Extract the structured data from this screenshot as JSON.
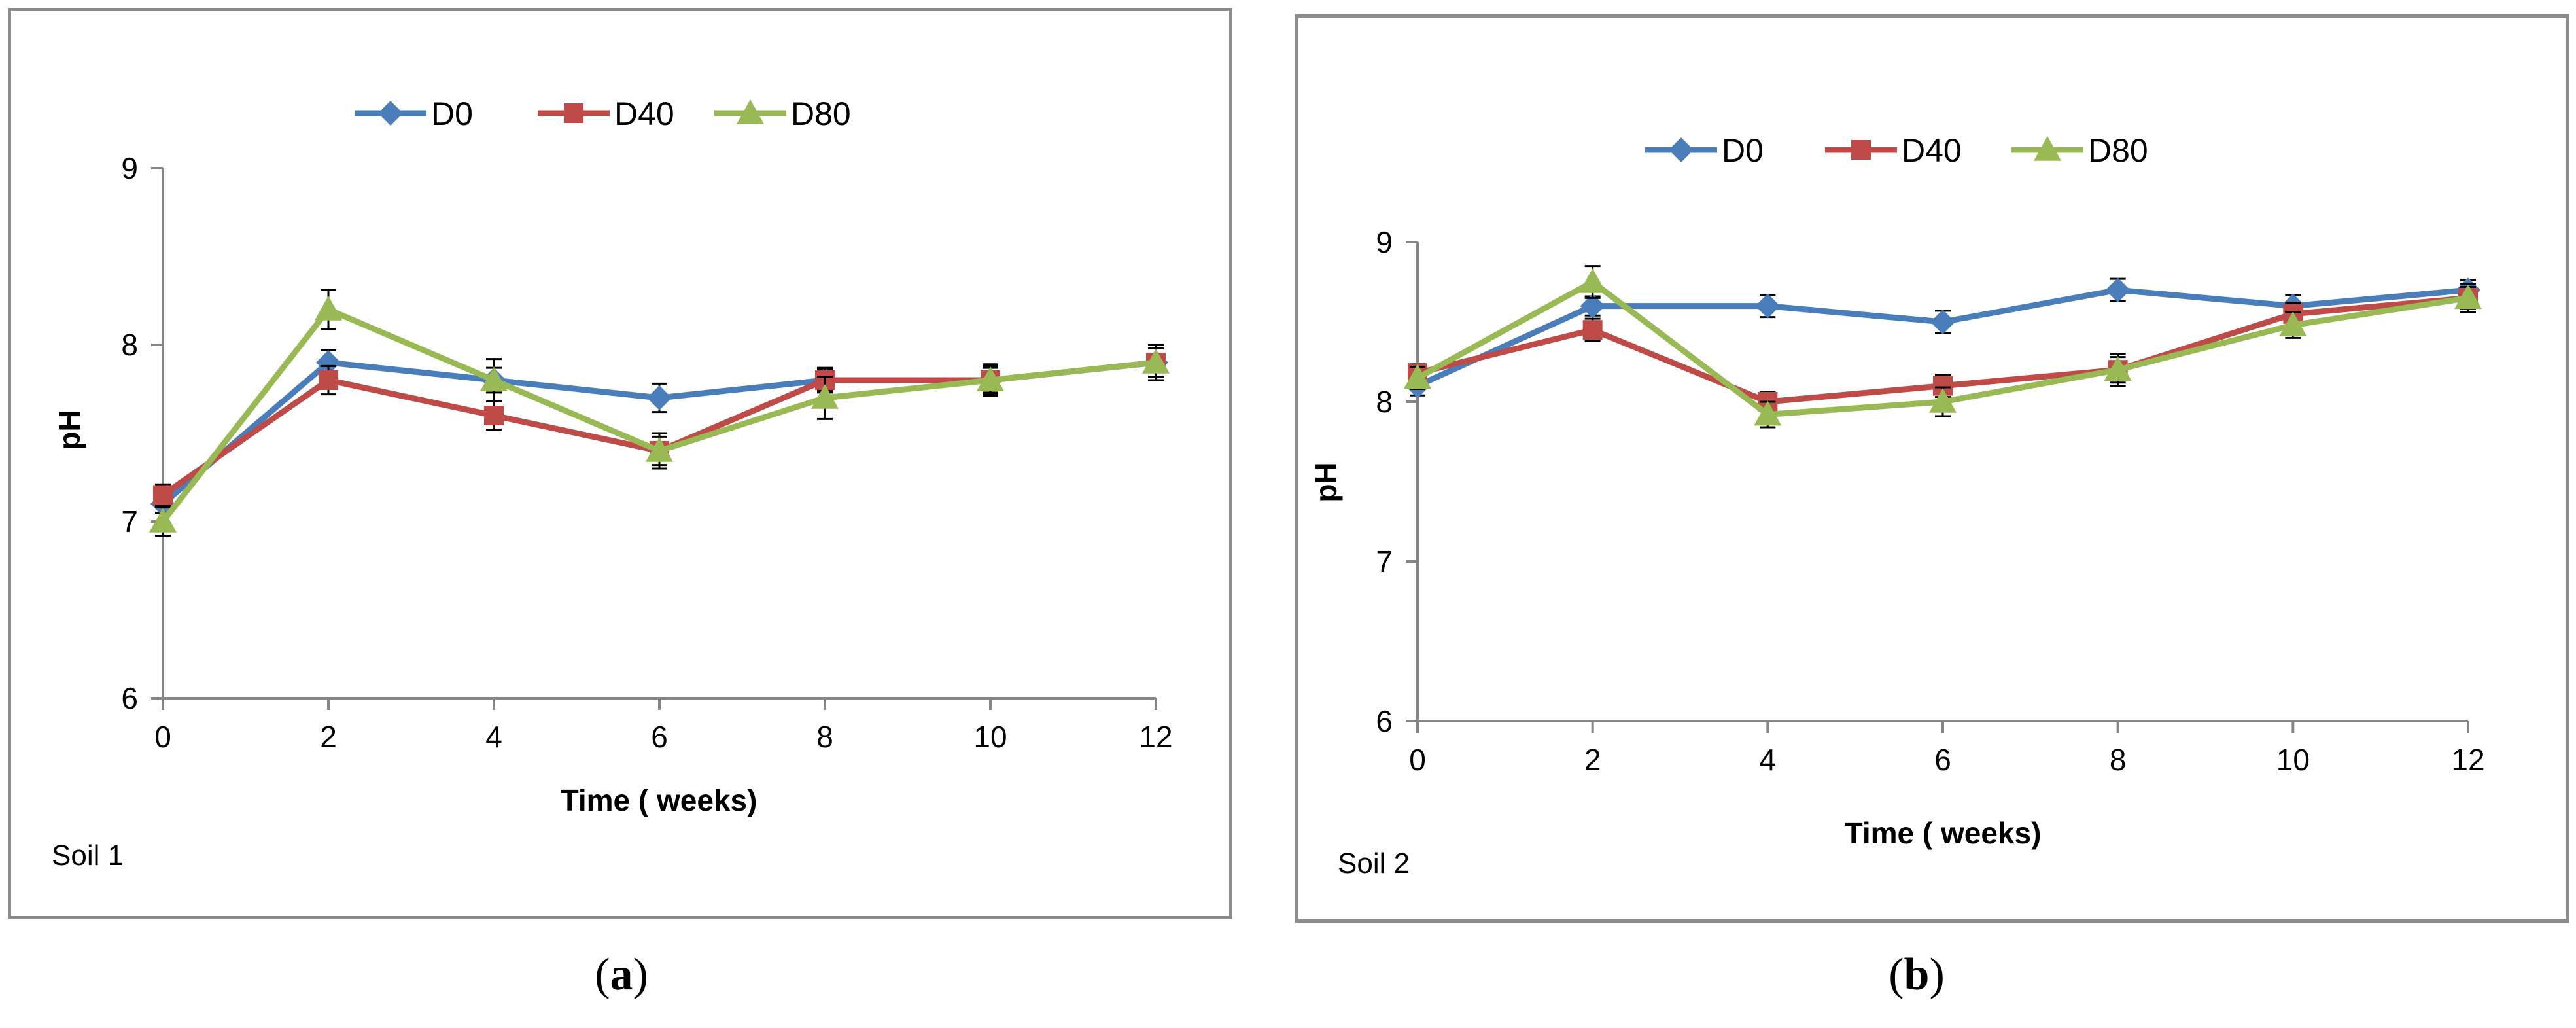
{
  "chart_data": [
    {
      "type": "line",
      "panel_label": "a",
      "annotation": "Soil  1",
      "xlabel": "Time ( weeks)",
      "ylabel": "pH",
      "x": [
        0,
        2,
        4,
        6,
        8,
        10,
        12
      ],
      "xlim": [
        0,
        12
      ],
      "ylim": [
        6,
        9
      ],
      "yticks": [
        6,
        7,
        8,
        9
      ],
      "xticks": [
        0,
        2,
        4,
        6,
        8,
        10,
        12
      ],
      "legend_position": "top",
      "grid": false,
      "series": [
        {
          "name": "D0",
          "marker": "diamond",
          "color": "#4a7ebb",
          "values": [
            7.1,
            7.9,
            7.8,
            7.7,
            7.8,
            7.8,
            7.9
          ],
          "error": [
            0.05,
            0.07,
            0.07,
            0.08,
            0.06,
            0.07,
            0.08
          ]
        },
        {
          "name": "D40",
          "marker": "square",
          "color": "#be4b48",
          "values": [
            7.15,
            7.8,
            7.6,
            7.4,
            7.8,
            7.8,
            7.9
          ],
          "error": [
            0.06,
            0.08,
            0.08,
            0.08,
            0.07,
            0.08,
            0.1
          ]
        },
        {
          "name": "D80",
          "marker": "triangle",
          "color": "#98b954",
          "values": [
            7.0,
            8.2,
            7.8,
            7.4,
            7.7,
            7.8,
            7.9
          ],
          "error": [
            0.08,
            0.11,
            0.12,
            0.1,
            0.12,
            0.09,
            0.1
          ]
        }
      ]
    },
    {
      "type": "line",
      "panel_label": "b",
      "annotation": "Soil 2",
      "xlabel": "Time ( weeks)",
      "ylabel": "pH",
      "x": [
        0,
        2,
        4,
        6,
        8,
        10,
        12
      ],
      "xlim": [
        0,
        12
      ],
      "ylim": [
        6,
        9
      ],
      "yticks": [
        6,
        7,
        8,
        9
      ],
      "xticks": [
        0,
        2,
        4,
        6,
        8,
        10,
        12
      ],
      "legend_position": "top",
      "grid": false,
      "series": [
        {
          "name": "D0",
          "marker": "diamond",
          "color": "#4a7ebb",
          "values": [
            8.1,
            8.6,
            8.6,
            8.5,
            8.7,
            8.6,
            8.7
          ],
          "error": [
            0.06,
            0.06,
            0.07,
            0.07,
            0.07,
            0.07,
            0.06
          ]
        },
        {
          "name": "D40",
          "marker": "square",
          "color": "#be4b48",
          "values": [
            8.18,
            8.45,
            8.0,
            8.1,
            8.2,
            8.55,
            8.65
          ],
          "error": [
            0.06,
            0.07,
            0.06,
            0.07,
            0.08,
            0.07,
            0.07
          ]
        },
        {
          "name": "D80",
          "marker": "triangle",
          "color": "#98b954",
          "values": [
            8.15,
            8.75,
            7.92,
            8.0,
            8.2,
            8.48,
            8.65
          ],
          "error": [
            0.07,
            0.1,
            0.08,
            0.09,
            0.1,
            0.08,
            0.09
          ]
        }
      ]
    }
  ],
  "captions": [
    {
      "open": "(",
      "letter": "a",
      "close": ")"
    },
    {
      "open": "(",
      "letter": "b",
      "close": ")"
    }
  ]
}
